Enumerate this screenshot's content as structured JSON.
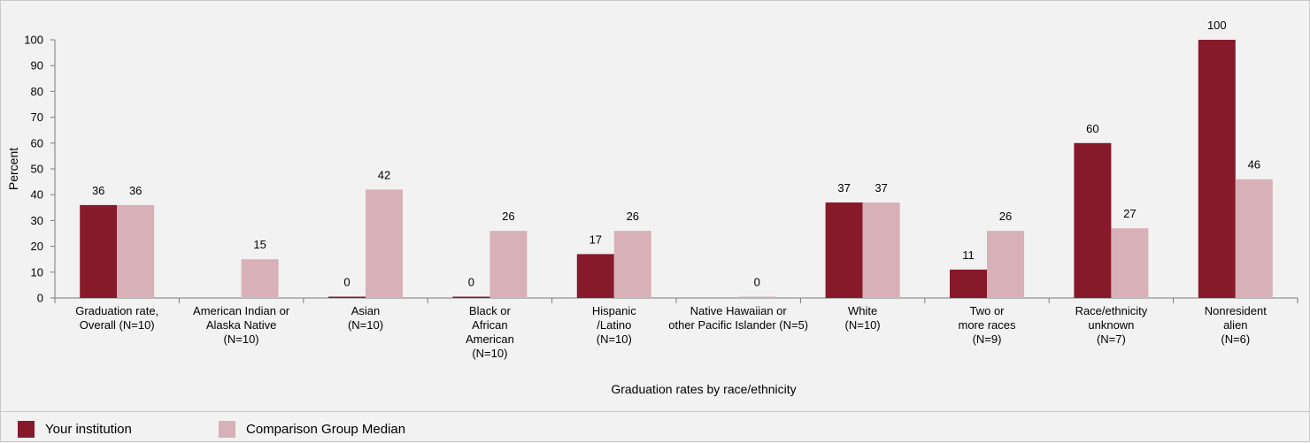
{
  "chart_data": {
    "type": "bar",
    "title": "",
    "xlabel": "Graduation rates by race/ethnicity",
    "ylabel": "Percent",
    "ylim": [
      0,
      100
    ],
    "yticks": [
      0,
      10,
      20,
      30,
      40,
      50,
      60,
      70,
      80,
      90,
      100
    ],
    "grid": false,
    "legend_position": "bottom-left",
    "categories": [
      [
        "Graduation rate,",
        "Overall (N=10)"
      ],
      [
        "American Indian or",
        "Alaska Native",
        "(N=10)"
      ],
      [
        "Asian",
        "(N=10)"
      ],
      [
        "Black or",
        "African",
        "American",
        "(N=10)"
      ],
      [
        "Hispanic",
        "/Latino",
        "(N=10)"
      ],
      [
        "Native Hawaiian or",
        "other Pacific Islander (N=5)"
      ],
      [
        "White",
        "(N=10)"
      ],
      [
        "Two or",
        "more races",
        "(N=9)"
      ],
      [
        "Race/ethnicity",
        "unknown",
        "(N=7)"
      ],
      [
        "Nonresident",
        "alien",
        "(N=6)"
      ]
    ],
    "series": [
      {
        "name": "Your institution",
        "color": "#861a2b",
        "values": [
          36,
          null,
          0,
          0,
          17,
          null,
          37,
          11,
          60,
          100
        ]
      },
      {
        "name": "Comparison Group Median",
        "color": "#d8b1b8",
        "values": [
          36,
          15,
          42,
          26,
          26,
          0,
          37,
          26,
          27,
          46
        ]
      }
    ]
  }
}
